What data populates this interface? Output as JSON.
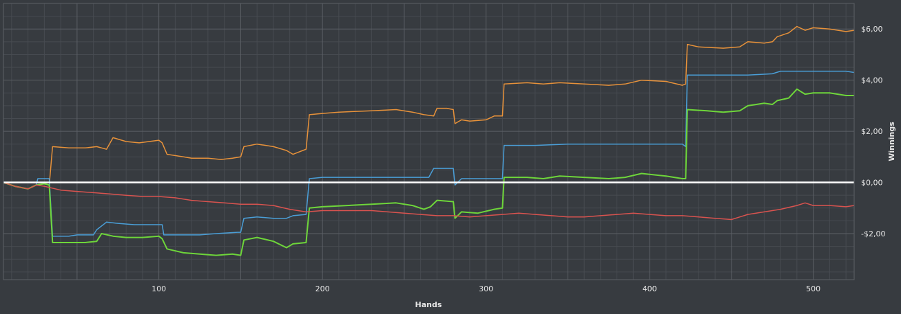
{
  "chart_data": {
    "type": "line",
    "title": "",
    "xlabel": "Hands",
    "ylabel": "Winnings",
    "xlim": [
      5,
      525
    ],
    "ylim": [
      -3.8,
      7.0
    ],
    "x_ticks": [
      100,
      200,
      300,
      400,
      500
    ],
    "y_ticks": [
      {
        "value": 6,
        "label": "$6,00"
      },
      {
        "value": 4,
        "label": "$4,00"
      },
      {
        "value": 2,
        "label": "$2,00"
      },
      {
        "value": 0,
        "label": "$0,00"
      },
      {
        "value": -2,
        "label": "-$2,00"
      }
    ],
    "grid": true,
    "legend": "none",
    "colors": {
      "background": "#373b40",
      "major_grid": "#5c6066",
      "minor_grid": "#474b51",
      "zero_line": "#ffffff",
      "text": "#e6e6e6"
    },
    "series": [
      {
        "color": "#e8923a",
        "points": [
          [
            5,
            0
          ],
          [
            12,
            -0.15
          ],
          [
            20,
            -0.25
          ],
          [
            25,
            -0.1
          ],
          [
            30,
            -0.05
          ],
          [
            33,
            -0.1
          ],
          [
            35,
            1.4
          ],
          [
            45,
            1.35
          ],
          [
            55,
            1.35
          ],
          [
            62,
            1.4
          ],
          [
            68,
            1.3
          ],
          [
            72,
            1.75
          ],
          [
            80,
            1.6
          ],
          [
            88,
            1.55
          ],
          [
            100,
            1.65
          ],
          [
            102,
            1.55
          ],
          [
            105,
            1.1
          ],
          [
            115,
            1.0
          ],
          [
            120,
            0.95
          ],
          [
            130,
            0.95
          ],
          [
            138,
            0.9
          ],
          [
            145,
            0.95
          ],
          [
            150,
            1.0
          ],
          [
            152,
            1.4
          ],
          [
            160,
            1.5
          ],
          [
            170,
            1.4
          ],
          [
            178,
            1.25
          ],
          [
            182,
            1.1
          ],
          [
            188,
            1.25
          ],
          [
            190,
            1.3
          ],
          [
            192,
            2.65
          ],
          [
            200,
            2.7
          ],
          [
            210,
            2.75
          ],
          [
            230,
            2.8
          ],
          [
            245,
            2.85
          ],
          [
            255,
            2.75
          ],
          [
            262,
            2.65
          ],
          [
            268,
            2.6
          ],
          [
            270,
            2.9
          ],
          [
            276,
            2.9
          ],
          [
            280,
            2.85
          ],
          [
            281,
            2.3
          ],
          [
            285,
            2.45
          ],
          [
            290,
            2.4
          ],
          [
            300,
            2.45
          ],
          [
            305,
            2.6
          ],
          [
            310,
            2.6
          ],
          [
            311,
            3.85
          ],
          [
            325,
            3.9
          ],
          [
            335,
            3.85
          ],
          [
            345,
            3.9
          ],
          [
            360,
            3.85
          ],
          [
            375,
            3.8
          ],
          [
            385,
            3.85
          ],
          [
            395,
            4.0
          ],
          [
            410,
            3.95
          ],
          [
            420,
            3.8
          ],
          [
            422,
            3.85
          ],
          [
            423,
            5.4
          ],
          [
            430,
            5.3
          ],
          [
            445,
            5.25
          ],
          [
            455,
            5.3
          ],
          [
            460,
            5.5
          ],
          [
            470,
            5.45
          ],
          [
            475,
            5.5
          ],
          [
            478,
            5.7
          ],
          [
            485,
            5.85
          ],
          [
            490,
            6.1
          ],
          [
            495,
            5.95
          ],
          [
            500,
            6.05
          ],
          [
            510,
            6.0
          ],
          [
            520,
            5.9
          ],
          [
            525,
            5.95
          ]
        ]
      },
      {
        "color": "#4a9fd8",
        "points": [
          [
            5,
            0
          ],
          [
            12,
            -0.15
          ],
          [
            20,
            -0.25
          ],
          [
            25,
            -0.1
          ],
          [
            26,
            0.15
          ],
          [
            33,
            0.15
          ],
          [
            35,
            -2.1
          ],
          [
            45,
            -2.1
          ],
          [
            50,
            -2.05
          ],
          [
            60,
            -2.05
          ],
          [
            62,
            -1.85
          ],
          [
            68,
            -1.55
          ],
          [
            75,
            -1.6
          ],
          [
            85,
            -1.65
          ],
          [
            95,
            -1.65
          ],
          [
            102,
            -1.65
          ],
          [
            103,
            -2.05
          ],
          [
            115,
            -2.05
          ],
          [
            125,
            -2.05
          ],
          [
            135,
            -2.0
          ],
          [
            148,
            -1.95
          ],
          [
            150,
            -1.95
          ],
          [
            152,
            -1.4
          ],
          [
            160,
            -1.35
          ],
          [
            170,
            -1.4
          ],
          [
            178,
            -1.4
          ],
          [
            182,
            -1.3
          ],
          [
            190,
            -1.25
          ],
          [
            192,
            0.15
          ],
          [
            200,
            0.2
          ],
          [
            210,
            0.2
          ],
          [
            230,
            0.2
          ],
          [
            250,
            0.2
          ],
          [
            265,
            0.2
          ],
          [
            268,
            0.55
          ],
          [
            280,
            0.55
          ],
          [
            281,
            -0.1
          ],
          [
            285,
            0.15
          ],
          [
            300,
            0.15
          ],
          [
            310,
            0.15
          ],
          [
            311,
            1.45
          ],
          [
            330,
            1.45
          ],
          [
            350,
            1.5
          ],
          [
            380,
            1.5
          ],
          [
            400,
            1.5
          ],
          [
            420,
            1.5
          ],
          [
            422,
            1.4
          ],
          [
            423,
            4.2
          ],
          [
            440,
            4.2
          ],
          [
            460,
            4.2
          ],
          [
            475,
            4.25
          ],
          [
            480,
            4.35
          ],
          [
            500,
            4.35
          ],
          [
            520,
            4.35
          ],
          [
            525,
            4.3
          ]
        ]
      },
      {
        "color": "#6ed63a",
        "points": [
          [
            5,
            0
          ],
          [
            12,
            -0.15
          ],
          [
            20,
            -0.25
          ],
          [
            25,
            -0.1
          ],
          [
            30,
            -0.05
          ],
          [
            33,
            -0.1
          ],
          [
            35,
            -2.35
          ],
          [
            45,
            -2.35
          ],
          [
            55,
            -2.35
          ],
          [
            62,
            -2.3
          ],
          [
            65,
            -2.0
          ],
          [
            72,
            -2.1
          ],
          [
            80,
            -2.15
          ],
          [
            90,
            -2.15
          ],
          [
            100,
            -2.1
          ],
          [
            102,
            -2.2
          ],
          [
            105,
            -2.6
          ],
          [
            115,
            -2.75
          ],
          [
            125,
            -2.8
          ],
          [
            135,
            -2.85
          ],
          [
            145,
            -2.8
          ],
          [
            150,
            -2.85
          ],
          [
            152,
            -2.25
          ],
          [
            160,
            -2.15
          ],
          [
            170,
            -2.3
          ],
          [
            178,
            -2.55
          ],
          [
            182,
            -2.4
          ],
          [
            190,
            -2.35
          ],
          [
            192,
            -1.0
          ],
          [
            200,
            -0.95
          ],
          [
            215,
            -0.9
          ],
          [
            230,
            -0.85
          ],
          [
            245,
            -0.8
          ],
          [
            255,
            -0.9
          ],
          [
            262,
            -1.05
          ],
          [
            266,
            -0.95
          ],
          [
            270,
            -0.7
          ],
          [
            280,
            -0.75
          ],
          [
            281,
            -1.4
          ],
          [
            285,
            -1.15
          ],
          [
            295,
            -1.2
          ],
          [
            305,
            -1.05
          ],
          [
            310,
            -1.0
          ],
          [
            311,
            0.2
          ],
          [
            325,
            0.2
          ],
          [
            335,
            0.15
          ],
          [
            345,
            0.25
          ],
          [
            360,
            0.2
          ],
          [
            375,
            0.15
          ],
          [
            385,
            0.2
          ],
          [
            395,
            0.35
          ],
          [
            410,
            0.25
          ],
          [
            420,
            0.15
          ],
          [
            422,
            0.15
          ],
          [
            423,
            2.85
          ],
          [
            435,
            2.8
          ],
          [
            445,
            2.75
          ],
          [
            455,
            2.8
          ],
          [
            460,
            3.0
          ],
          [
            470,
            3.1
          ],
          [
            475,
            3.05
          ],
          [
            478,
            3.2
          ],
          [
            485,
            3.3
          ],
          [
            490,
            3.65
          ],
          [
            495,
            3.45
          ],
          [
            500,
            3.5
          ],
          [
            510,
            3.5
          ],
          [
            520,
            3.4
          ],
          [
            525,
            3.4
          ]
        ]
      },
      {
        "color": "#d9534f",
        "points": [
          [
            5,
            0
          ],
          [
            12,
            -0.15
          ],
          [
            20,
            -0.25
          ],
          [
            25,
            -0.1
          ],
          [
            30,
            -0.15
          ],
          [
            40,
            -0.3
          ],
          [
            50,
            -0.35
          ],
          [
            60,
            -0.4
          ],
          [
            70,
            -0.45
          ],
          [
            80,
            -0.5
          ],
          [
            90,
            -0.55
          ],
          [
            100,
            -0.55
          ],
          [
            110,
            -0.6
          ],
          [
            120,
            -0.7
          ],
          [
            130,
            -0.75
          ],
          [
            140,
            -0.8
          ],
          [
            150,
            -0.85
          ],
          [
            160,
            -0.85
          ],
          [
            170,
            -0.9
          ],
          [
            180,
            -1.05
          ],
          [
            190,
            -1.15
          ],
          [
            200,
            -1.1
          ],
          [
            210,
            -1.1
          ],
          [
            220,
            -1.1
          ],
          [
            230,
            -1.1
          ],
          [
            240,
            -1.15
          ],
          [
            250,
            -1.2
          ],
          [
            260,
            -1.25
          ],
          [
            270,
            -1.3
          ],
          [
            280,
            -1.3
          ],
          [
            290,
            -1.35
          ],
          [
            300,
            -1.3
          ],
          [
            310,
            -1.25
          ],
          [
            320,
            -1.2
          ],
          [
            330,
            -1.25
          ],
          [
            340,
            -1.3
          ],
          [
            350,
            -1.35
          ],
          [
            360,
            -1.35
          ],
          [
            370,
            -1.3
          ],
          [
            380,
            -1.25
          ],
          [
            390,
            -1.2
          ],
          [
            400,
            -1.25
          ],
          [
            410,
            -1.3
          ],
          [
            420,
            -1.3
          ],
          [
            430,
            -1.35
          ],
          [
            440,
            -1.4
          ],
          [
            450,
            -1.45
          ],
          [
            455,
            -1.35
          ],
          [
            460,
            -1.25
          ],
          [
            470,
            -1.15
          ],
          [
            480,
            -1.05
          ],
          [
            490,
            -0.9
          ],
          [
            495,
            -0.8
          ],
          [
            500,
            -0.9
          ],
          [
            510,
            -0.9
          ],
          [
            520,
            -0.95
          ],
          [
            525,
            -0.9
          ]
        ]
      }
    ]
  }
}
